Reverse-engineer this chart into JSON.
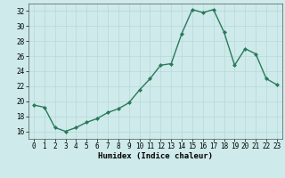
{
  "title": "",
  "xlabel": "Humidex (Indice chaleur)",
  "x": [
    0,
    1,
    2,
    3,
    4,
    5,
    6,
    7,
    8,
    9,
    10,
    11,
    12,
    13,
    14,
    15,
    16,
    17,
    18,
    19,
    20,
    21,
    22,
    23
  ],
  "y": [
    19.5,
    19.2,
    16.5,
    16.0,
    16.5,
    17.2,
    17.7,
    18.5,
    19.0,
    19.8,
    21.5,
    23.0,
    24.8,
    25.0,
    29.0,
    32.2,
    31.8,
    32.2,
    29.2,
    24.8,
    27.0,
    26.3,
    23.0,
    22.2
  ],
  "line_color": "#2a7a5a",
  "marker": "D",
  "marker_size": 2.0,
  "background_color": "#ceeaea",
  "grid_color": "#b8d8d8",
  "ylim": [
    15,
    33
  ],
  "xlim": [
    -0.5,
    23.5
  ],
  "yticks": [
    16,
    18,
    20,
    22,
    24,
    26,
    28,
    30,
    32
  ],
  "xticks": [
    0,
    1,
    2,
    3,
    4,
    5,
    6,
    7,
    8,
    9,
    10,
    11,
    12,
    13,
    14,
    15,
    16,
    17,
    18,
    19,
    20,
    21,
    22,
    23
  ],
  "tick_fontsize": 5.5,
  "xlabel_fontsize": 6.5,
  "line_width": 1.0,
  "spine_color": "#555555"
}
